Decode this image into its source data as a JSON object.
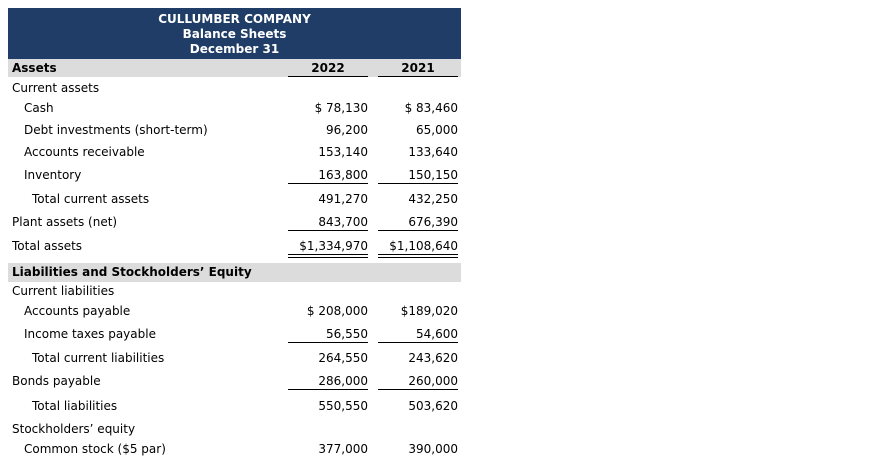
{
  "header": {
    "company": "CULLUMBER COMPANY",
    "statement": "Balance Sheets",
    "date": "December 31"
  },
  "columns": {
    "y1": "2022",
    "y2": "2021"
  },
  "assets": {
    "heading": "Assets",
    "current_heading": "Current assets",
    "cash": {
      "label": "Cash",
      "v1": "$ 78,130",
      "v2": "$ 83,460"
    },
    "debt_inv": {
      "label": "Debt investments (short-term)",
      "v1": "96,200",
      "v2": "65,000"
    },
    "ar": {
      "label": "Accounts receivable",
      "v1": "153,140",
      "v2": "133,640"
    },
    "inventory": {
      "label": "Inventory",
      "v1": "163,800",
      "v2": "150,150"
    },
    "total_current": {
      "label": "Total current assets",
      "v1": "491,270",
      "v2": "432,250"
    },
    "plant": {
      "label": "Plant assets (net)",
      "v1": "843,700",
      "v2": "676,390"
    },
    "total": {
      "label": "Total assets",
      "v1": "$1,334,970",
      "v2": "$1,108,640"
    }
  },
  "liabilities": {
    "heading": "Liabilities and Stockholders’ Equity",
    "current_heading": "Current liabilities",
    "ap": {
      "label": "Accounts payable",
      "v1": "$ 208,000",
      "v2": "$189,020"
    },
    "income_tax": {
      "label": "Income taxes payable",
      "v1": "56,550",
      "v2": "54,600"
    },
    "total_current": {
      "label": "Total current liabilities",
      "v1": "264,550",
      "v2": "243,620"
    },
    "bonds": {
      "label": "Bonds payable",
      "v1": "286,000",
      "v2": "260,000"
    },
    "total": {
      "label": "Total liabilities",
      "v1": "550,550",
      "v2": "503,620"
    }
  },
  "equity": {
    "heading": "Stockholders’ equity",
    "common": {
      "label": "Common stock ($5 par)",
      "v1": "377,000",
      "v2": "390,000"
    }
  }
}
